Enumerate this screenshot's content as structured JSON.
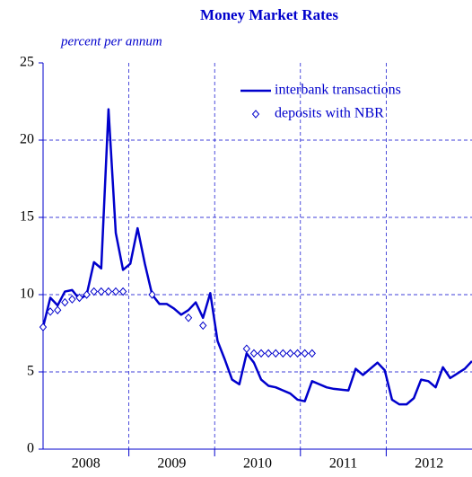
{
  "chart_data": {
    "type": "line",
    "title": "Money Market Rates",
    "subtitle": "percent per annum",
    "categories": [
      "2008",
      null,
      null,
      null,
      null,
      null,
      null,
      null,
      null,
      null,
      null,
      null,
      "2009",
      null,
      null,
      null,
      null,
      null,
      null,
      null,
      null,
      null,
      null,
      null,
      "2010",
      null,
      null,
      null,
      null,
      null,
      null,
      null,
      null,
      null,
      null,
      null,
      "2011",
      null,
      null,
      null,
      null,
      null,
      null,
      null,
      null,
      null,
      null,
      null,
      "2012",
      null,
      null,
      null,
      null,
      null,
      null,
      null,
      null,
      null,
      null,
      null
    ],
    "series": [
      {
        "name": "interbank transactions",
        "color": "#0000cc",
        "style": "line",
        "values": [
          7.9,
          9.8,
          9.3,
          10.2,
          10.3,
          9.7,
          10.0,
          12.1,
          11.7,
          22.0,
          14.0,
          11.6,
          12.0,
          14.3,
          12.0,
          10.0,
          9.4,
          9.4,
          9.1,
          8.7,
          9.0,
          9.5,
          8.5,
          10.1,
          7.0,
          5.8,
          4.5,
          4.2,
          6.2,
          5.6,
          4.5,
          4.1,
          4.0,
          3.8,
          3.6,
          3.2,
          3.1,
          4.4,
          4.2,
          4.0,
          3.9,
          3.85,
          3.8,
          5.2,
          4.8,
          5.2,
          5.6,
          5.1,
          3.2,
          2.9,
          2.9,
          3.3,
          4.5,
          4.4,
          4.0,
          5.3,
          4.6,
          4.9,
          5.2,
          5.7
        ]
      },
      {
        "name": "deposits with NBR",
        "color": "#0000cc",
        "style": "marker",
        "values": [
          7.9,
          8.9,
          9.0,
          9.5,
          9.7,
          9.8,
          10.0,
          10.2,
          10.2,
          10.2,
          10.2,
          10.2,
          null,
          null,
          null,
          10.0,
          null,
          null,
          null,
          null,
          8.5,
          null,
          8.0,
          null,
          null,
          null,
          null,
          null,
          6.5,
          6.2,
          6.2,
          6.2,
          6.2,
          6.2,
          6.2,
          6.2,
          6.2,
          6.2,
          null,
          null,
          null,
          null,
          null,
          null,
          null,
          null,
          null,
          null,
          null,
          null,
          null,
          null,
          null,
          null,
          null,
          null,
          null,
          null,
          null,
          null
        ]
      }
    ],
    "ylim": [
      0,
      25
    ],
    "yticks": [
      0,
      5,
      10,
      15,
      20,
      25
    ],
    "grid": true
  }
}
